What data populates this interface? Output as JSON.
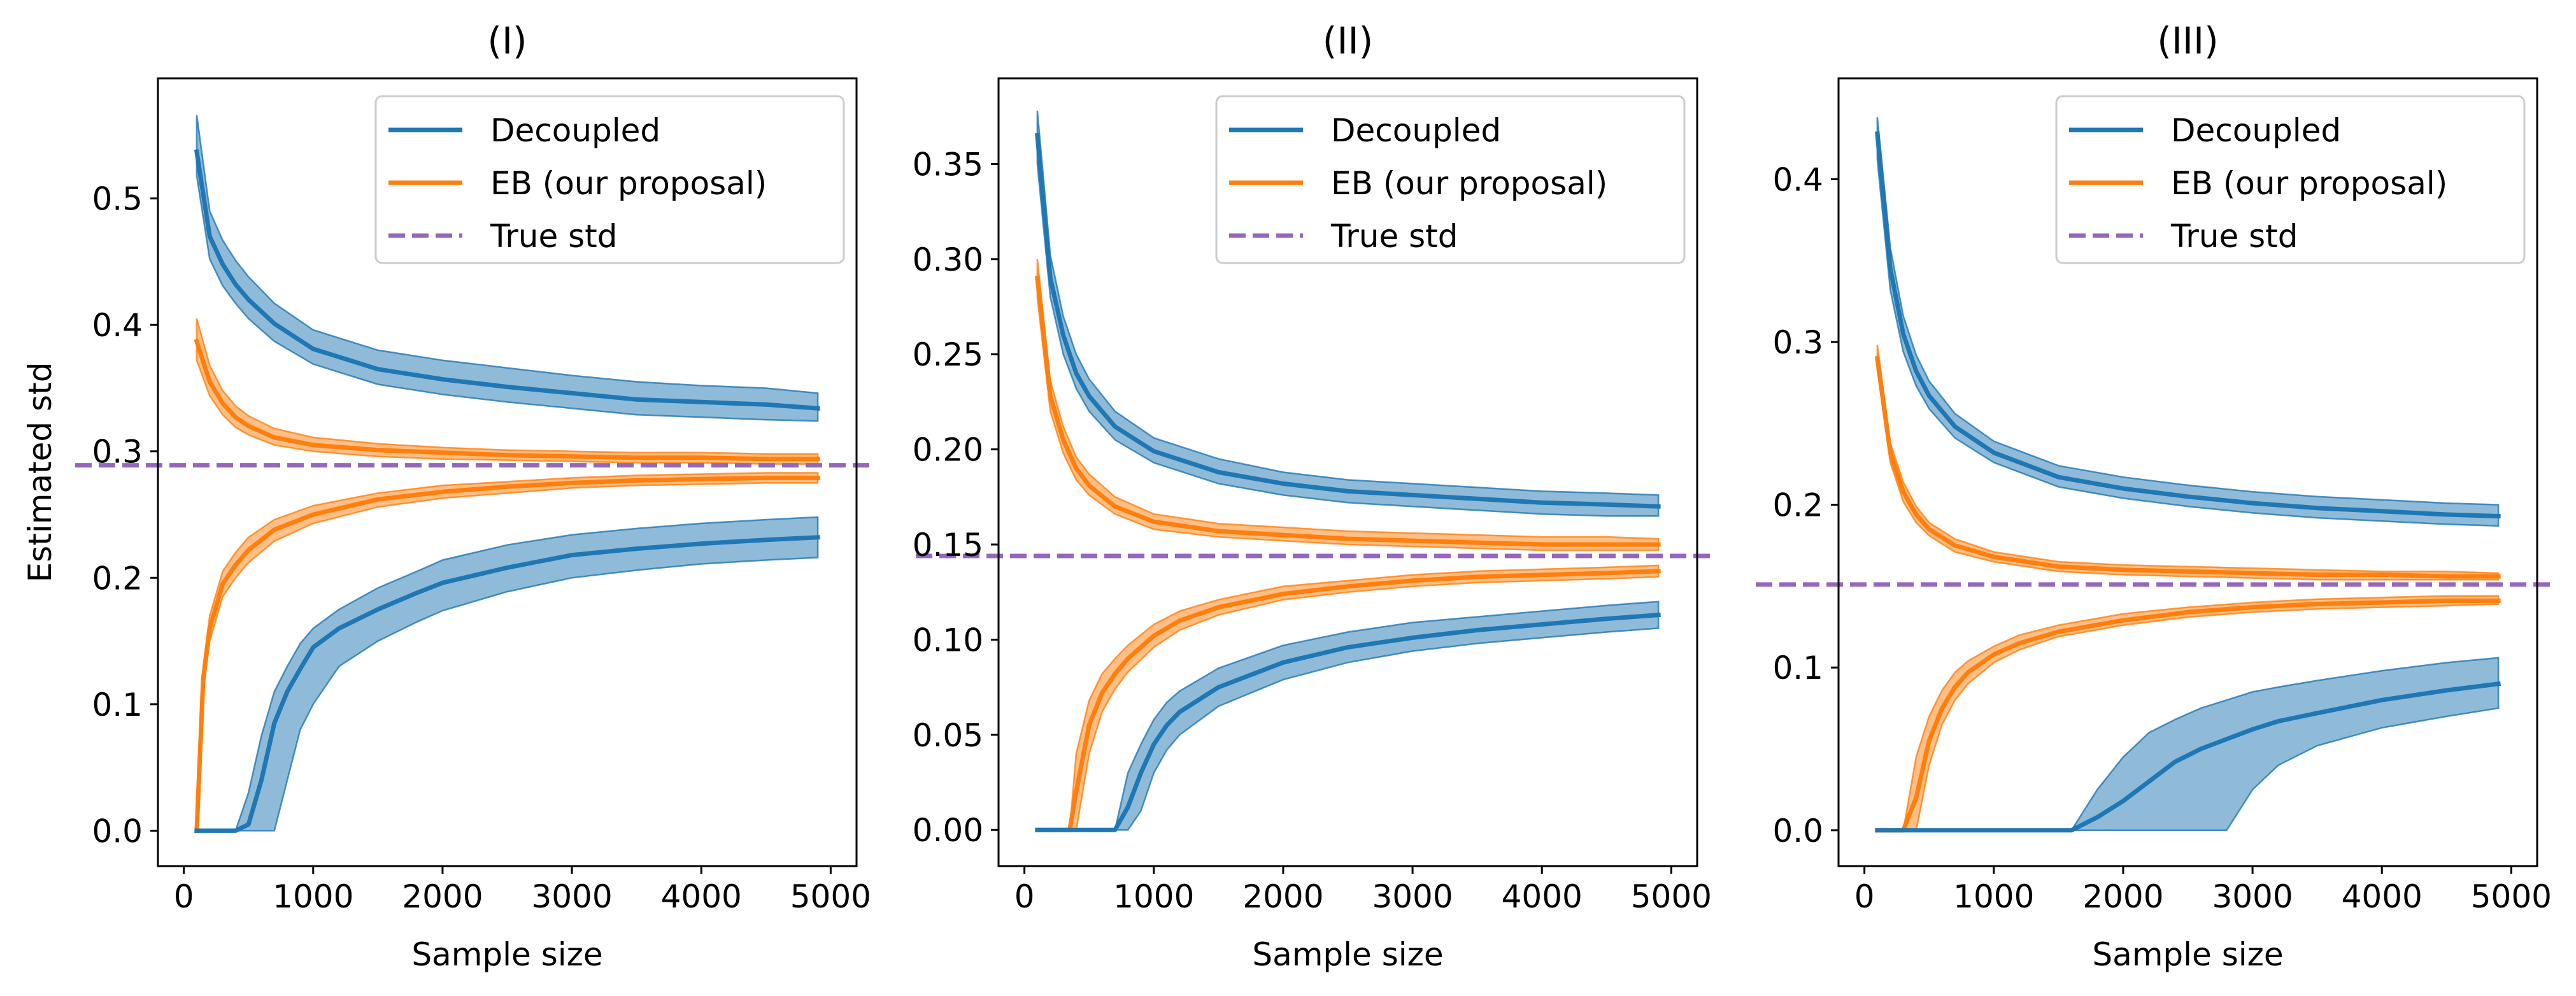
{
  "figure": {
    "colors": {
      "decoupled": "#1f77b4",
      "eb": "#ff7f0e",
      "true_std": "#9467bd"
    }
  },
  "chart_data": [
    {
      "type": "line",
      "title": "(I)",
      "xlabel": "Sample size",
      "ylabel": "Estimated std",
      "xlim": [
        -200,
        5200
      ],
      "ylim": [
        -0.028,
        0.595
      ],
      "xticks": [
        0,
        1000,
        2000,
        3000,
        4000,
        5000
      ],
      "xtick_labels": [
        "0",
        "1000",
        "2000",
        "3000",
        "4000",
        "5000"
      ],
      "yticks": [
        0.0,
        0.1,
        0.2,
        0.3,
        0.4,
        0.5
      ],
      "ytick_labels": [
        "0.0",
        "0.1",
        "0.2",
        "0.3",
        "0.4",
        "0.5"
      ],
      "true_std": 0.289,
      "legend": {
        "placement": "top-right",
        "entries": [
          "Decoupled",
          "EB (our proposal)",
          "True std"
        ]
      },
      "series": [
        {
          "name": "Decoupled (upper)",
          "key": "decoupled",
          "x": [
            100,
            200,
            300,
            400,
            500,
            700,
            1000,
            1500,
            2000,
            2500,
            3000,
            3500,
            4000,
            4500,
            4900
          ],
          "values": [
            0.537,
            0.47,
            0.448,
            0.432,
            0.42,
            0.401,
            0.381,
            0.365,
            0.357,
            0.351,
            0.346,
            0.341,
            0.339,
            0.337,
            0.334
          ],
          "lower": [
            0.518,
            0.452,
            0.431,
            0.417,
            0.405,
            0.387,
            0.369,
            0.353,
            0.345,
            0.339,
            0.334,
            0.329,
            0.327,
            0.325,
            0.324
          ],
          "upper": [
            0.566,
            0.49,
            0.467,
            0.451,
            0.438,
            0.417,
            0.396,
            0.38,
            0.372,
            0.366,
            0.36,
            0.355,
            0.352,
            0.35,
            0.346
          ]
        },
        {
          "name": "EB (upper)",
          "key": "eb",
          "x": [
            100,
            200,
            300,
            400,
            500,
            700,
            1000,
            1500,
            2000,
            2500,
            3000,
            3500,
            4000,
            4500,
            4900
          ],
          "values": [
            0.387,
            0.355,
            0.338,
            0.327,
            0.32,
            0.311,
            0.305,
            0.301,
            0.299,
            0.297,
            0.296,
            0.295,
            0.295,
            0.294,
            0.294
          ],
          "lower": [
            0.372,
            0.344,
            0.329,
            0.319,
            0.313,
            0.305,
            0.3,
            0.296,
            0.294,
            0.293,
            0.292,
            0.291,
            0.291,
            0.29,
            0.29
          ],
          "upper": [
            0.405,
            0.368,
            0.348,
            0.336,
            0.328,
            0.318,
            0.311,
            0.306,
            0.303,
            0.301,
            0.3,
            0.299,
            0.299,
            0.298,
            0.298
          ]
        },
        {
          "name": "EB (lower)",
          "key": "eb",
          "x": [
            100,
            150,
            200,
            300,
            400,
            500,
            700,
            1000,
            1500,
            2000,
            2500,
            3000,
            3500,
            4000,
            4500,
            4900
          ],
          "values": [
            0.0,
            0.12,
            0.16,
            0.195,
            0.21,
            0.222,
            0.238,
            0.25,
            0.262,
            0.268,
            0.272,
            0.275,
            0.277,
            0.278,
            0.279,
            0.279
          ],
          "lower": [
            0.0,
            0.11,
            0.15,
            0.185,
            0.2,
            0.212,
            0.229,
            0.243,
            0.256,
            0.263,
            0.267,
            0.271,
            0.273,
            0.274,
            0.275,
            0.275
          ],
          "upper": [
            0.0,
            0.13,
            0.17,
            0.205,
            0.22,
            0.232,
            0.246,
            0.257,
            0.267,
            0.273,
            0.276,
            0.279,
            0.281,
            0.282,
            0.283,
            0.283
          ]
        },
        {
          "name": "Decoupled (lower)",
          "key": "decoupled",
          "x": [
            100,
            400,
            500,
            600,
            700,
            800,
            900,
            1000,
            1200,
            1500,
            1800,
            2000,
            2500,
            3000,
            3500,
            4000,
            4500,
            4900
          ],
          "values": [
            0.0,
            0.0,
            0.005,
            0.04,
            0.085,
            0.11,
            0.128,
            0.145,
            0.16,
            0.175,
            0.188,
            0.196,
            0.208,
            0.218,
            0.223,
            0.227,
            0.23,
            0.232
          ],
          "lower": [
            0.0,
            0.0,
            0.0,
            0.0,
            0.0,
            0.04,
            0.08,
            0.1,
            0.13,
            0.15,
            0.165,
            0.174,
            0.189,
            0.2,
            0.206,
            0.211,
            0.214,
            0.216
          ],
          "upper": [
            0.0,
            0.0,
            0.03,
            0.075,
            0.11,
            0.13,
            0.148,
            0.16,
            0.175,
            0.192,
            0.205,
            0.214,
            0.226,
            0.234,
            0.239,
            0.243,
            0.246,
            0.248
          ]
        }
      ]
    },
    {
      "type": "line",
      "title": "(II)",
      "xlabel": "Sample size",
      "ylabel": "",
      "xlim": [
        -200,
        5200
      ],
      "ylim": [
        -0.019,
        0.395
      ],
      "xticks": [
        0,
        1000,
        2000,
        3000,
        4000,
        5000
      ],
      "xtick_labels": [
        "0",
        "1000",
        "2000",
        "3000",
        "4000",
        "5000"
      ],
      "yticks": [
        0.0,
        0.05,
        0.1,
        0.15,
        0.2,
        0.25,
        0.3,
        0.35
      ],
      "ytick_labels": [
        "0.00",
        "0.05",
        "0.10",
        "0.15",
        "0.20",
        "0.25",
        "0.30",
        "0.35"
      ],
      "true_std": 0.144,
      "legend": {
        "placement": "top-right",
        "entries": [
          "Decoupled",
          "EB (our proposal)",
          "True std"
        ]
      },
      "series": [
        {
          "name": "Decoupled (upper)",
          "key": "decoupled",
          "x": [
            100,
            200,
            300,
            400,
            500,
            700,
            1000,
            1500,
            2000,
            2500,
            3000,
            3500,
            4000,
            4500,
            4900
          ],
          "values": [
            0.365,
            0.29,
            0.26,
            0.24,
            0.228,
            0.212,
            0.199,
            0.188,
            0.182,
            0.178,
            0.176,
            0.174,
            0.172,
            0.171,
            0.17
          ],
          "lower": [
            0.35,
            0.28,
            0.25,
            0.232,
            0.22,
            0.205,
            0.193,
            0.182,
            0.176,
            0.172,
            0.17,
            0.168,
            0.166,
            0.165,
            0.165
          ],
          "upper": [
            0.378,
            0.302,
            0.27,
            0.25,
            0.237,
            0.22,
            0.206,
            0.195,
            0.188,
            0.184,
            0.182,
            0.18,
            0.178,
            0.177,
            0.176
          ]
        },
        {
          "name": "EB (upper)",
          "key": "eb",
          "x": [
            100,
            200,
            300,
            400,
            500,
            700,
            1000,
            1500,
            2000,
            2500,
            3000,
            3500,
            4000,
            4500,
            4900
          ],
          "values": [
            0.29,
            0.228,
            0.205,
            0.19,
            0.181,
            0.17,
            0.162,
            0.157,
            0.155,
            0.153,
            0.152,
            0.151,
            0.15,
            0.15,
            0.15
          ],
          "lower": [
            0.28,
            0.22,
            0.198,
            0.184,
            0.176,
            0.166,
            0.158,
            0.154,
            0.152,
            0.15,
            0.149,
            0.148,
            0.147,
            0.147,
            0.147
          ],
          "upper": [
            0.3,
            0.236,
            0.212,
            0.196,
            0.187,
            0.175,
            0.166,
            0.161,
            0.159,
            0.157,
            0.156,
            0.155,
            0.154,
            0.154,
            0.153
          ]
        },
        {
          "name": "EB (lower)",
          "key": "eb",
          "x": [
            100,
            350,
            400,
            500,
            600,
            700,
            800,
            1000,
            1200,
            1500,
            2000,
            2500,
            3000,
            3500,
            4000,
            4500,
            4900
          ],
          "values": [
            0.0,
            0.0,
            0.02,
            0.055,
            0.072,
            0.082,
            0.09,
            0.102,
            0.11,
            0.117,
            0.124,
            0.128,
            0.131,
            0.133,
            0.134,
            0.135,
            0.136
          ],
          "lower": [
            0.0,
            0.0,
            0.0,
            0.04,
            0.062,
            0.074,
            0.083,
            0.096,
            0.105,
            0.113,
            0.121,
            0.125,
            0.128,
            0.13,
            0.131,
            0.132,
            0.133
          ],
          "upper": [
            0.0,
            0.0,
            0.04,
            0.068,
            0.082,
            0.09,
            0.097,
            0.108,
            0.115,
            0.121,
            0.128,
            0.131,
            0.134,
            0.136,
            0.137,
            0.138,
            0.139
          ]
        },
        {
          "name": "Decoupled (lower)",
          "key": "decoupled",
          "x": [
            100,
            700,
            800,
            900,
            1000,
            1100,
            1200,
            1500,
            2000,
            2500,
            3000,
            3500,
            4000,
            4500,
            4900
          ],
          "values": [
            0.0,
            0.0,
            0.012,
            0.03,
            0.045,
            0.055,
            0.062,
            0.075,
            0.088,
            0.096,
            0.101,
            0.105,
            0.108,
            0.111,
            0.113
          ],
          "lower": [
            0.0,
            0.0,
            0.0,
            0.01,
            0.03,
            0.042,
            0.05,
            0.065,
            0.079,
            0.088,
            0.094,
            0.098,
            0.101,
            0.104,
            0.106
          ],
          "upper": [
            0.0,
            0.0,
            0.03,
            0.045,
            0.058,
            0.067,
            0.073,
            0.085,
            0.097,
            0.104,
            0.109,
            0.112,
            0.115,
            0.118,
            0.12
          ]
        }
      ]
    },
    {
      "type": "line",
      "title": "(III)",
      "xlabel": "Sample size",
      "ylabel": "",
      "xlim": [
        -200,
        5200
      ],
      "ylim": [
        -0.022,
        0.462
      ],
      "xticks": [
        0,
        1000,
        2000,
        3000,
        4000,
        5000
      ],
      "xtick_labels": [
        "0",
        "1000",
        "2000",
        "3000",
        "4000",
        "5000"
      ],
      "yticks": [
        0.0,
        0.1,
        0.2,
        0.3,
        0.4
      ],
      "ytick_labels": [
        "0.0",
        "0.1",
        "0.2",
        "0.3",
        "0.4"
      ],
      "true_std": 0.151,
      "legend": {
        "placement": "top-right",
        "entries": [
          "Decoupled",
          "EB (our proposal)",
          "True std"
        ]
      },
      "series": [
        {
          "name": "Decoupled (upper)",
          "key": "decoupled",
          "x": [
            100,
            200,
            300,
            400,
            500,
            700,
            1000,
            1500,
            2000,
            2500,
            3000,
            3500,
            4000,
            4500,
            4900
          ],
          "values": [
            0.428,
            0.345,
            0.305,
            0.282,
            0.267,
            0.248,
            0.232,
            0.217,
            0.21,
            0.205,
            0.201,
            0.198,
            0.196,
            0.194,
            0.193
          ],
          "lower": [
            0.412,
            0.332,
            0.294,
            0.273,
            0.259,
            0.241,
            0.226,
            0.211,
            0.204,
            0.199,
            0.195,
            0.192,
            0.19,
            0.188,
            0.187
          ],
          "upper": [
            0.438,
            0.358,
            0.316,
            0.292,
            0.276,
            0.256,
            0.239,
            0.224,
            0.217,
            0.212,
            0.208,
            0.205,
            0.203,
            0.201,
            0.2
          ]
        },
        {
          "name": "EB (upper)",
          "key": "eb",
          "x": [
            100,
            200,
            300,
            400,
            500,
            700,
            1000,
            1500,
            2000,
            2500,
            3000,
            3500,
            4000,
            4500,
            4900
          ],
          "values": [
            0.29,
            0.232,
            0.208,
            0.194,
            0.185,
            0.175,
            0.168,
            0.162,
            0.16,
            0.159,
            0.158,
            0.157,
            0.157,
            0.156,
            0.156
          ],
          "lower": [
            0.283,
            0.226,
            0.202,
            0.189,
            0.181,
            0.171,
            0.165,
            0.159,
            0.157,
            0.156,
            0.155,
            0.154,
            0.154,
            0.154,
            0.154
          ],
          "upper": [
            0.298,
            0.238,
            0.214,
            0.199,
            0.189,
            0.179,
            0.171,
            0.165,
            0.163,
            0.162,
            0.161,
            0.16,
            0.159,
            0.159,
            0.158
          ]
        },
        {
          "name": "EB (lower)",
          "key": "eb",
          "x": [
            100,
            300,
            400,
            500,
            600,
            700,
            800,
            1000,
            1200,
            1500,
            2000,
            2500,
            3000,
            3500,
            4000,
            4500,
            4900
          ],
          "values": [
            0.0,
            0.0,
            0.02,
            0.055,
            0.075,
            0.088,
            0.097,
            0.108,
            0.115,
            0.122,
            0.129,
            0.134,
            0.137,
            0.139,
            0.14,
            0.141,
            0.141
          ],
          "lower": [
            0.0,
            0.0,
            0.0,
            0.04,
            0.065,
            0.08,
            0.09,
            0.103,
            0.111,
            0.119,
            0.126,
            0.131,
            0.134,
            0.136,
            0.137,
            0.138,
            0.139
          ],
          "upper": [
            0.0,
            0.0,
            0.045,
            0.07,
            0.086,
            0.097,
            0.104,
            0.113,
            0.12,
            0.126,
            0.133,
            0.137,
            0.14,
            0.142,
            0.143,
            0.144,
            0.144
          ]
        },
        {
          "name": "Decoupled (lower)",
          "key": "decoupled",
          "x": [
            100,
            1600,
            1800,
            2000,
            2200,
            2400,
            2600,
            2800,
            3000,
            3200,
            3500,
            4000,
            4500,
            4900
          ],
          "values": [
            0.0,
            0.0,
            0.008,
            0.018,
            0.03,
            0.042,
            0.05,
            0.056,
            0.062,
            0.067,
            0.072,
            0.08,
            0.086,
            0.09
          ],
          "lower": [
            0.0,
            0.0,
            0.0,
            0.0,
            0.0,
            0.0,
            0.0,
            0.0,
            0.025,
            0.04,
            0.052,
            0.063,
            0.07,
            0.075
          ],
          "upper": [
            0.0,
            0.0,
            0.025,
            0.045,
            0.06,
            0.068,
            0.075,
            0.08,
            0.085,
            0.088,
            0.092,
            0.098,
            0.103,
            0.106
          ]
        }
      ]
    }
  ]
}
